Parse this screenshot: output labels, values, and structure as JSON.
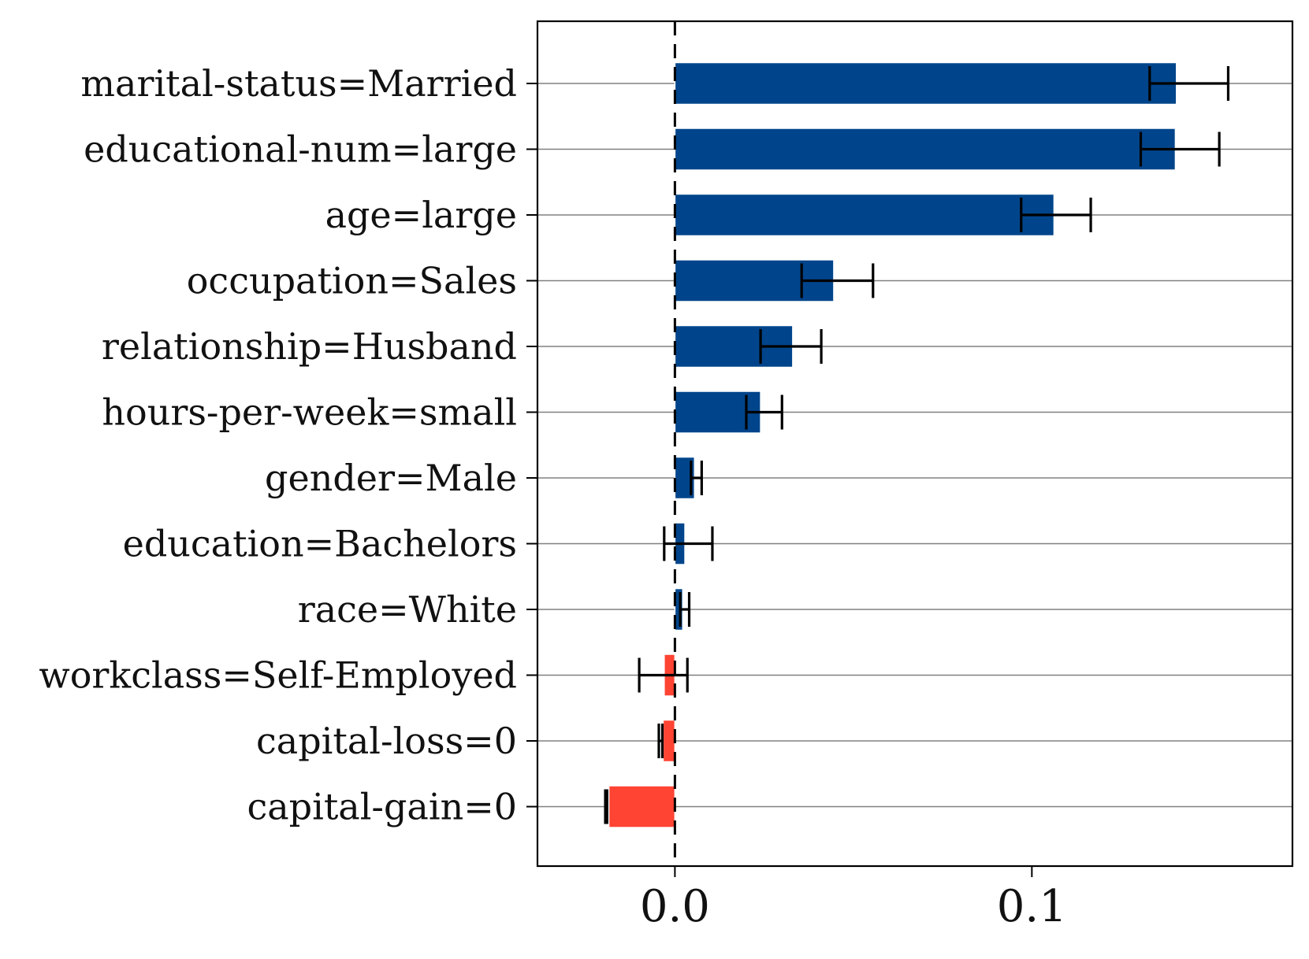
{
  "chart_data": {
    "type": "bar",
    "orientation": "horizontal",
    "title": "",
    "xlabel": "",
    "ylabel": "",
    "categories": [
      "marital-status=Married",
      "educational-num=large",
      "age=large",
      "occupation=Sales",
      "relationship=Husband",
      "hours-per-week=small",
      "gender=Male",
      "education=Bachelors",
      "race=White",
      "workclass=Self-Employed",
      "capital-loss=0",
      "capital-gain=0"
    ],
    "values": [
      0.1405,
      0.1402,
      0.1062,
      0.0445,
      0.033,
      0.024,
      0.0055,
      0.0028,
      0.0022,
      -0.003,
      -0.0033,
      -0.0185
    ],
    "error_low": [
      0.133,
      0.1305,
      0.097,
      0.0355,
      0.024,
      0.02,
      0.0045,
      -0.003,
      0.0015,
      -0.01,
      -0.0045,
      -0.0195
    ],
    "error_high": [
      0.155,
      0.1525,
      0.1165,
      0.0555,
      0.041,
      0.03,
      0.0075,
      0.0105,
      0.004,
      0.0035,
      -0.0035,
      -0.019
    ],
    "xlim": [
      -0.0385,
      0.173
    ],
    "xticks": [
      0.0,
      0.1
    ],
    "xtick_labels": [
      "0.0",
      "0.1"
    ],
    "reference_line": 0.0,
    "grid": "horizontal",
    "legend": "none",
    "colors": {
      "positive": "#00458B",
      "negative": "#FF4433",
      "error_bar": "#000000",
      "grid": "#808080",
      "axes": "#000000"
    }
  }
}
